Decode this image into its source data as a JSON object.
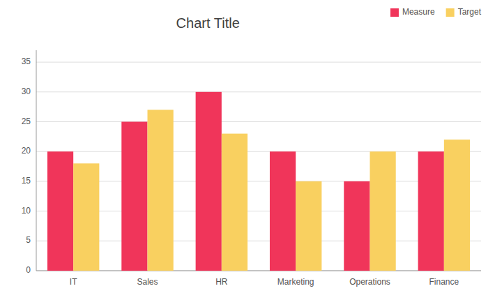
{
  "chart_data": {
    "type": "bar",
    "title": "Chart Title",
    "categories": [
      "IT",
      "Sales",
      "HR",
      "Marketing",
      "Operations",
      "Finance"
    ],
    "series": [
      {
        "name": "Measure",
        "color": "#F0355A",
        "values": [
          20,
          25,
          30,
          20,
          15,
          20
        ]
      },
      {
        "name": "Target",
        "color": "#F9D060",
        "values": [
          18,
          27,
          23,
          15,
          20,
          22
        ]
      }
    ],
    "ylim": [
      0,
      37
    ],
    "yticks": [
      0,
      5,
      10,
      15,
      20,
      25,
      30,
      35
    ],
    "grid": true,
    "legend": "top-right"
  }
}
